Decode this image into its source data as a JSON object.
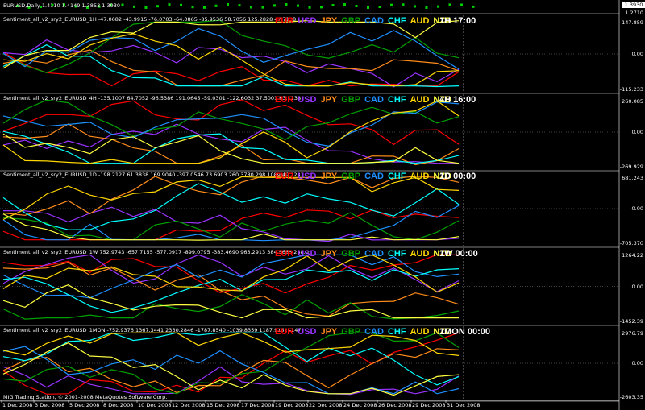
{
  "main": {
    "title": "EURUSD,Daily  1.4110 1.4149 1.3853 1.3930",
    "price_scale": [
      "1.3930",
      "1.2710"
    ]
  },
  "currencies": [
    {
      "name": "EUR",
      "color": "#ff0000"
    },
    {
      "name": "USD",
      "color": "#9933ff"
    },
    {
      "name": "JPY",
      "color": "#ff8c1a"
    },
    {
      "name": "GBP",
      "color": "#00a000"
    },
    {
      "name": "CAD",
      "color": "#1e90ff"
    },
    {
      "name": "CHF",
      "color": "#00ffff"
    },
    {
      "name": "AUD",
      "color": "#ffd700"
    },
    {
      "name": "NZD",
      "color": "#ffff40"
    }
  ],
  "panes": [
    {
      "label": "Sentiment_all_v2_sry2_EURUSD_1H -47.0682 -43.9915 -76.0703 -64.0865 -85.9536 58.7056 125.2828 47.7138",
      "timeframe": "1H 17:00",
      "scale_top": "147.859",
      "scale_mid": "0.00",
      "scale_bottom": "-115.233"
    },
    {
      "label": "Sentiment_all_v2_sry2_EURUSD_4H -135.1007 64.7052 -96.5386 191.0645 -59.0301 -122.6032 37.5001 63.1138",
      "timeframe": "4H 16:00",
      "scale_top": "260.085",
      "scale_mid": "0.00",
      "scale_bottom": "-269.929"
    },
    {
      "label": "Sentiment_all_v2_sry2_EURUSD_1D -198.2127 61.3838 169.9040 -397.0546 73.6903 260.3780 298.1089 49.2231",
      "timeframe": "1D 00:00",
      "scale_top": "681.243",
      "scale_mid": "0.00",
      "scale_bottom": "-705.370"
    },
    {
      "label": "Sentiment_all_v2_sry2_EURUSD_1W 752.9743 -657.7155 -577.0917 -899.0795 -383.4690 963.2913 384.5685 238.0",
      "timeframe": "1W 00:00",
      "scale_top": "1264.22",
      "scale_mid": "0.00",
      "scale_bottom": "-1452.39"
    },
    {
      "label": "Sentiment_all_v2_sry2_EURUSD_1MON -752.9376 1367.3441 2330.2846 -1787.8540 -1039.8359 1187.9152 -147",
      "timeframe": "1MON 00:00",
      "scale_top": "2976.79",
      "scale_mid": "0.00",
      "scale_bottom": "-2603.35"
    }
  ],
  "dates": [
    "1 Dec 2008",
    "3 Dec 2008",
    "5 Dec 2008",
    "8 Dec 2008",
    "10 Dec 2008",
    "12 Dec 2008",
    "15 Dec 2008",
    "17 Dec 2008",
    "19 Dec 2008",
    "22 Dec 2008",
    "24 Dec 2008",
    "26 Dec 2008",
    "29 Dec 2008",
    "31 Dec 2008"
  ],
  "copyright": "MIG Trading Station, © 2001-2008 MetaQuotes Software Corp."
}
